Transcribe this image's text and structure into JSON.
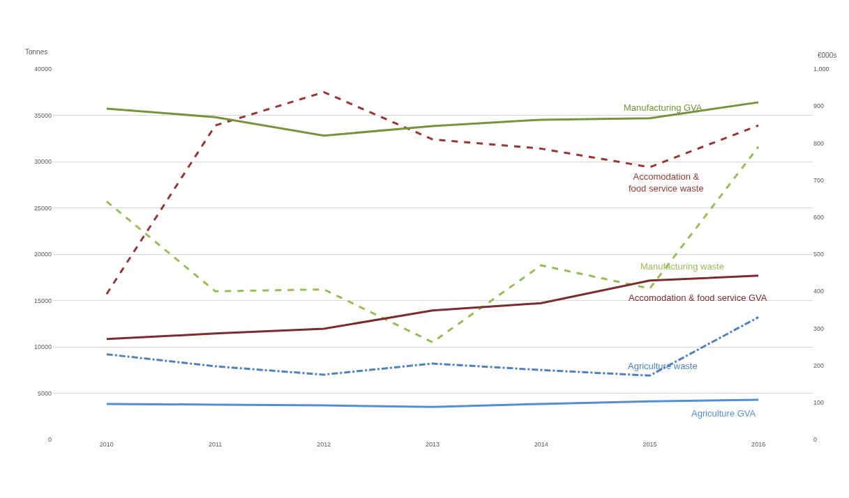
{
  "chart_data": {
    "type": "line",
    "categories": [
      "2010",
      "2011",
      "2012",
      "2013",
      "2014",
      "2015",
      "2016"
    ],
    "ylabel": "Tonnes",
    "y2label": "€000s",
    "ylim": [
      0,
      40000
    ],
    "yticks": [
      0,
      5000,
      10000,
      15000,
      20000,
      25000,
      30000,
      35000,
      40000
    ],
    "y2lim": [
      0,
      1000
    ],
    "y2ticks": [
      0,
      100,
      200,
      300,
      400,
      500,
      600,
      700,
      800,
      900,
      {
        "value": 1000,
        "label": "1,000"
      }
    ],
    "grid": "y",
    "legend": false,
    "series": [
      {
        "name": "Manufacturing GVA",
        "color": "#77933c",
        "axis": "y2",
        "line_style": "solid",
        "values": [
          893,
          870,
          820,
          846,
          863,
          867,
          910
        ]
      },
      {
        "name": "Accomodation & food service waste",
        "color": "#953735",
        "line_style": "dashed",
        "values": [
          15700,
          33900,
          37500,
          32400,
          31400,
          29400,
          33900
        ]
      },
      {
        "name": "Manufacturing waste",
        "color": "#9bbb59",
        "line_style": "dashed",
        "values": [
          25700,
          16000,
          16200,
          10500,
          18800,
          16300,
          31600
        ]
      },
      {
        "name": "Accomodation & food service GVA",
        "color": "#7b2c2c",
        "axis": "y2",
        "line_style": "solid",
        "values": [
          271,
          286,
          299,
          348,
          368,
          429,
          442
        ]
      },
      {
        "name": "Agriculture waste",
        "color": "#4f81bd",
        "line_style": "dashdot",
        "values": [
          9200,
          7900,
          7000,
          8200,
          7500,
          6900,
          13200
        ]
      },
      {
        "name": "Agriculture GVA",
        "color": "#558ed5",
        "axis": "y2",
        "line_style": "solid",
        "values": [
          96,
          94,
          92,
          88,
          96,
          103,
          107
        ]
      }
    ]
  }
}
